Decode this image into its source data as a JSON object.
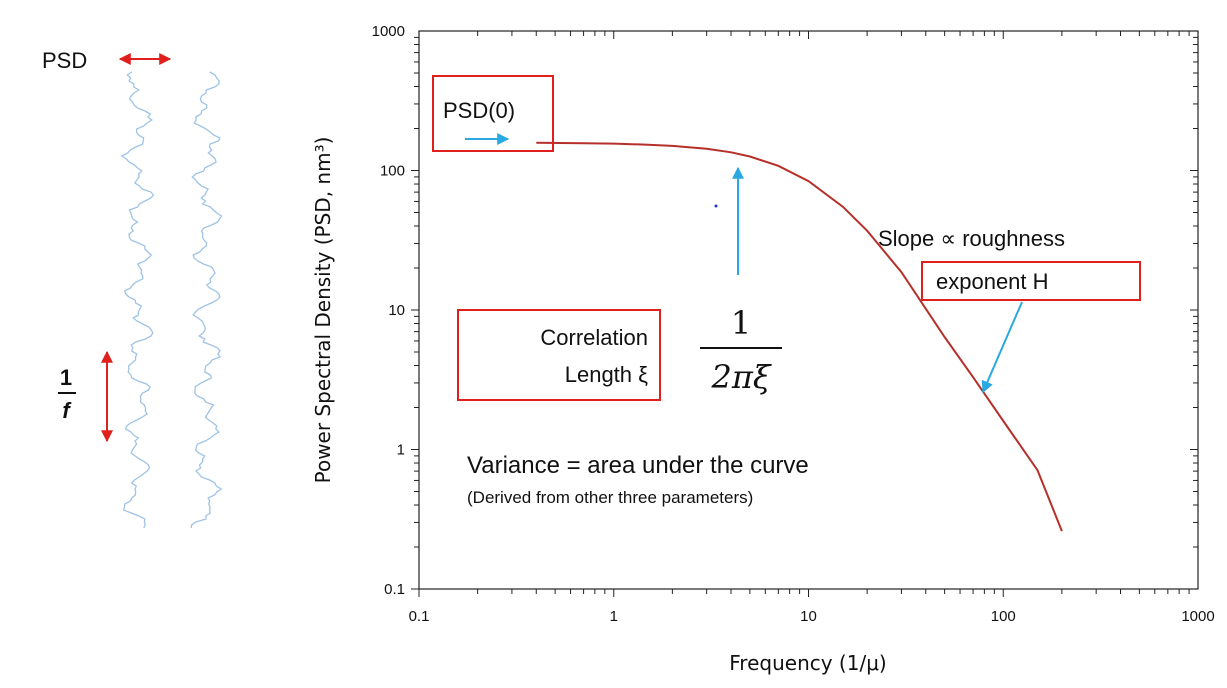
{
  "colors": {
    "curve": "#b5302a",
    "box": "#e0201c",
    "cyan_arrow": "#29a9e1",
    "red_arrow": "#e0201c",
    "trace": "#9fc3e6"
  },
  "left_panel": {
    "psd_label": "PSD",
    "one_over_f_num": "1",
    "one_over_f_den": "f"
  },
  "chart_data": {
    "type": "line",
    "xscale": "log",
    "yscale": "log",
    "xlim": [
      0.1,
      1000
    ],
    "ylim": [
      0.1,
      1000
    ],
    "xlabel": "Frequency (1/μ)",
    "ylabel": "Power Spectral Density (PSD, nm³)",
    "x_ticks": [
      "0.1",
      "1",
      "10",
      "100",
      "1000"
    ],
    "y_ticks": [
      "0.1",
      "1",
      "10",
      "100",
      "1000"
    ],
    "grid": false,
    "series": [
      {
        "x": [
          0.4,
          0.7,
          1,
          1.5,
          2,
          3,
          4,
          5,
          7,
          10,
          15,
          20,
          30,
          50,
          70,
          100,
          150,
          200
        ],
        "y": [
          158,
          157,
          156,
          153,
          150,
          143,
          135,
          126,
          108,
          84,
          55,
          37,
          18.7,
          6.4,
          3.3,
          1.6,
          0.71,
          0.26
        ]
      }
    ],
    "annotations": {
      "psd0": "PSD(0)",
      "corr_line1": "Correlation",
      "corr_line2": "Length ξ",
      "fraction_num": "1",
      "fraction_den": "2πξ",
      "slope_line1": "Slope ∝ roughness",
      "slope_line2": "exponent H",
      "variance": "Variance = area under the curve",
      "derived": "(Derived from other three parameters)"
    }
  }
}
